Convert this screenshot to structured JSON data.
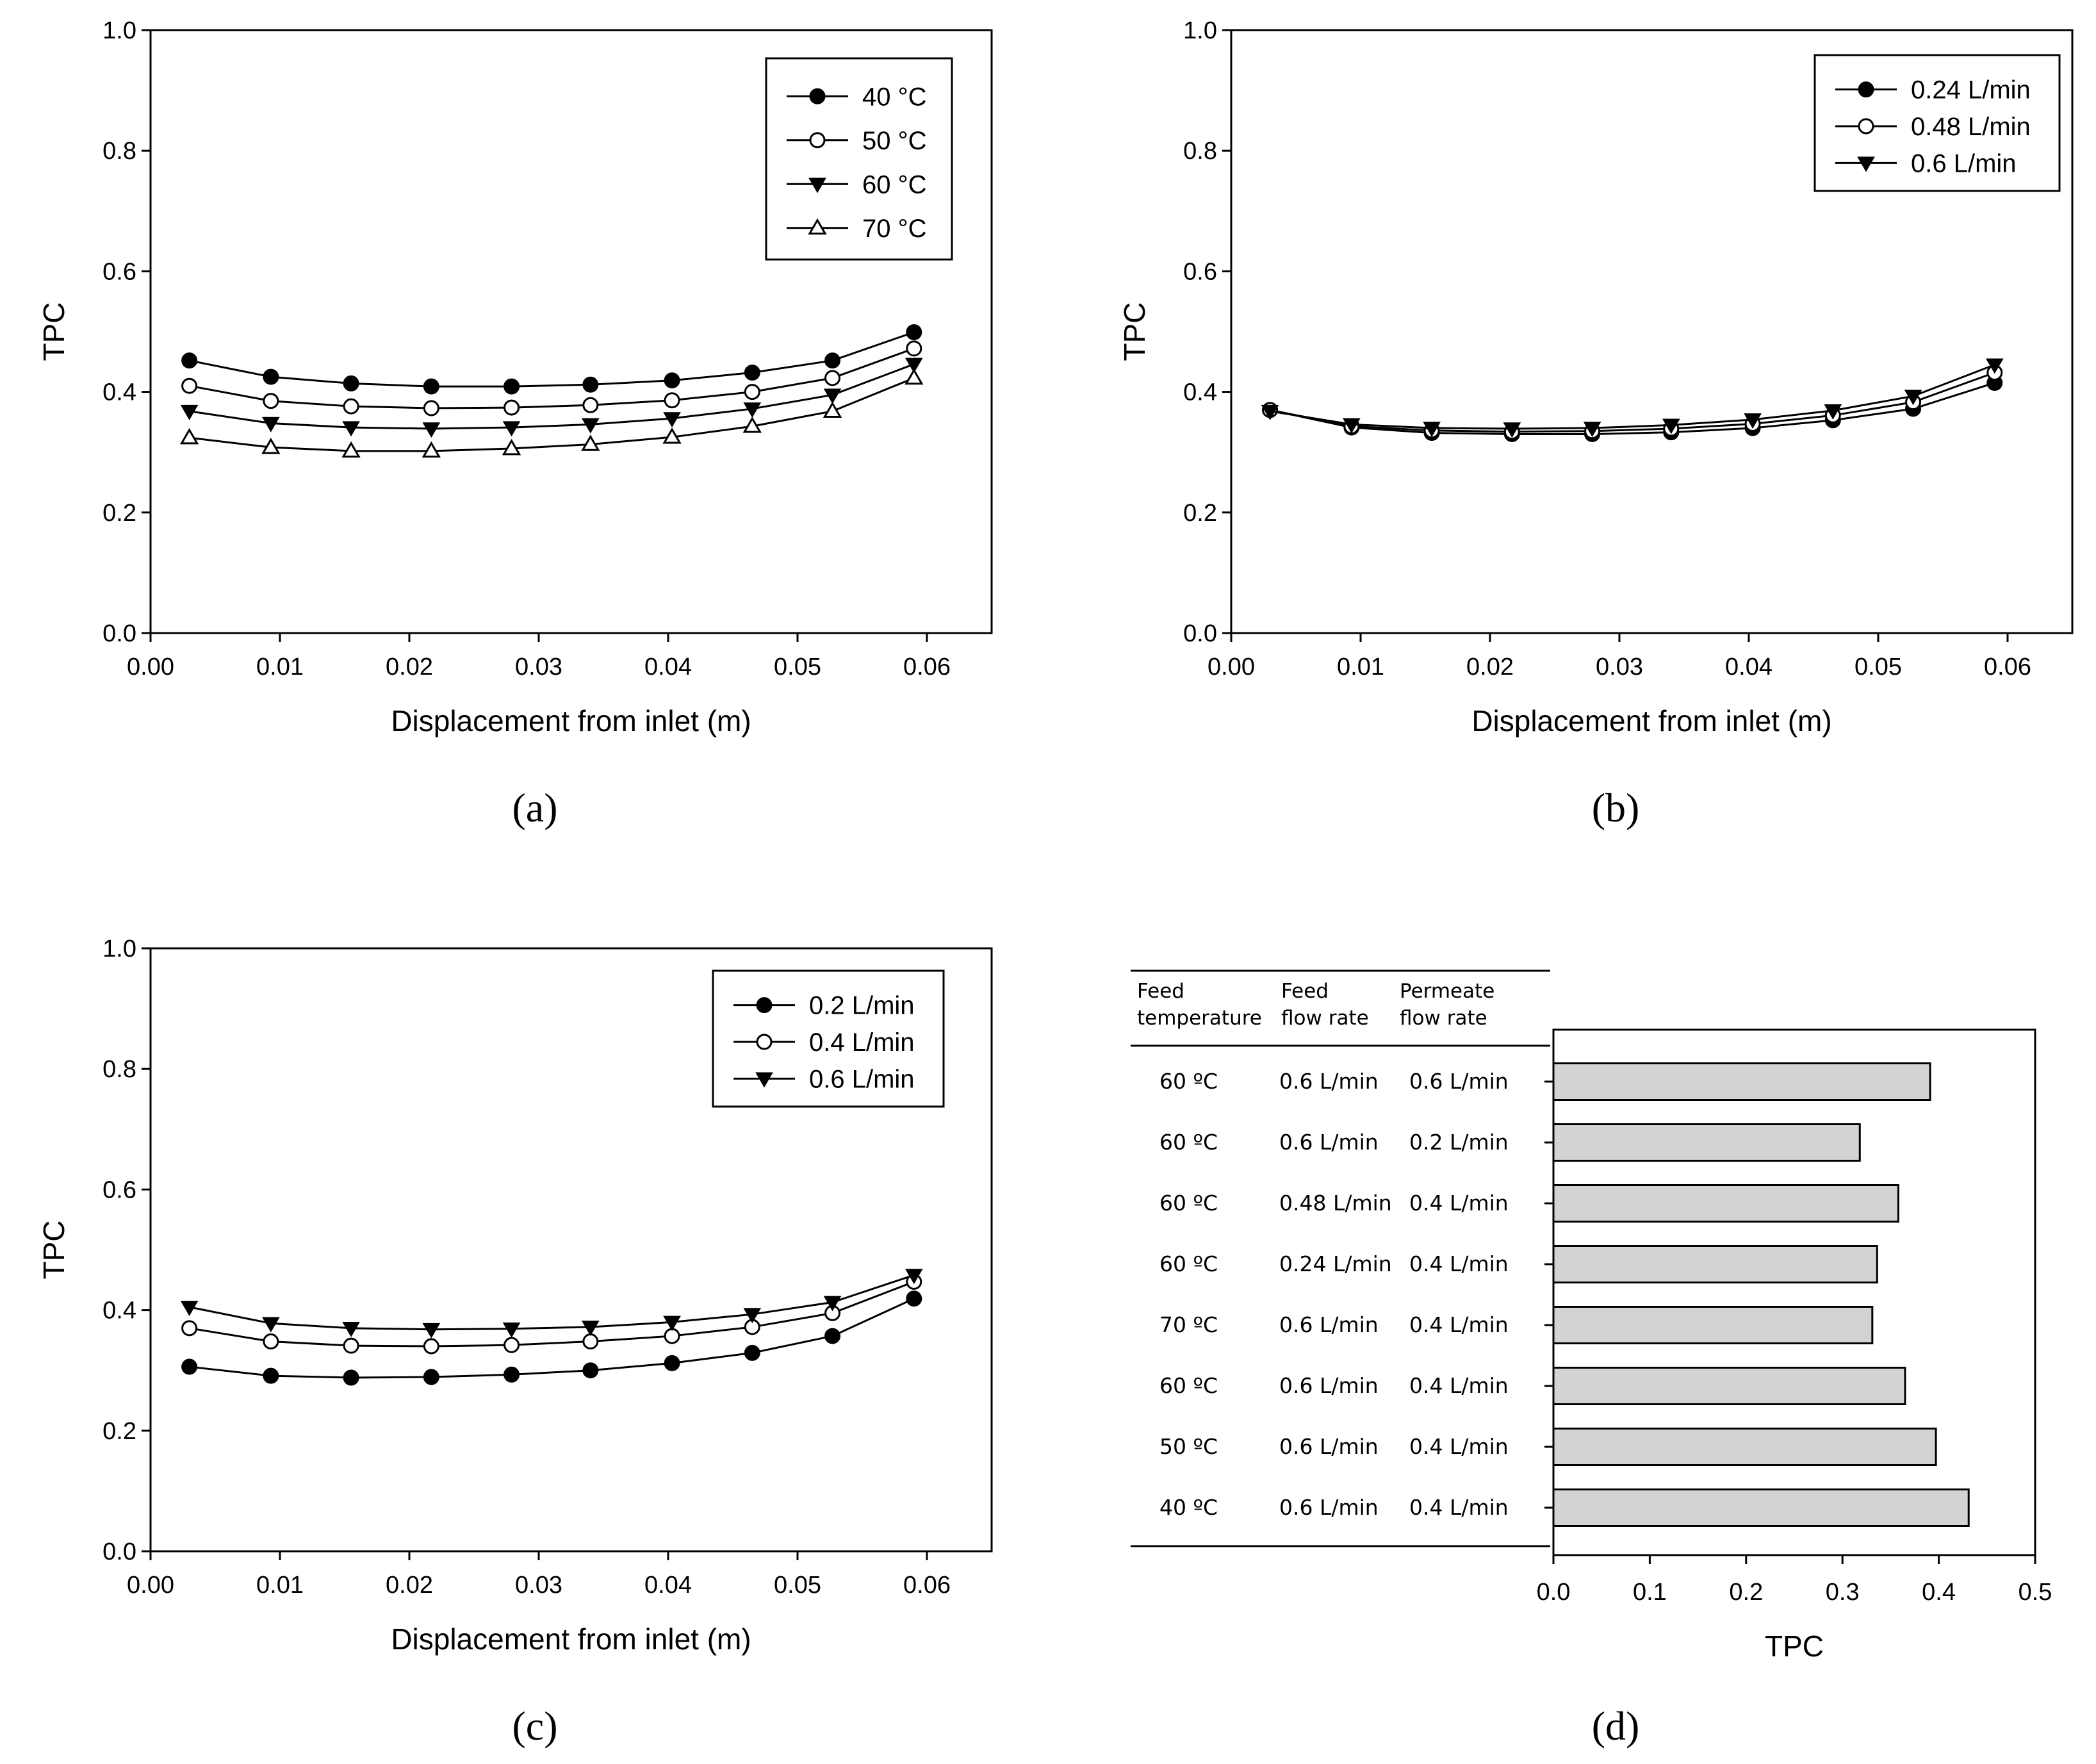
{
  "chart_data": [
    {
      "id": "a",
      "type": "line",
      "panel_label": "(a)",
      "xlabel": "Displacement from inlet (m)",
      "ylabel": "TPC",
      "xlim": [
        0.0,
        0.065
      ],
      "ylim": [
        0.0,
        1.0
      ],
      "xticks": [
        "0.00",
        "0.01",
        "0.02",
        "0.03",
        "0.04",
        "0.05",
        "0.06"
      ],
      "yticks": [
        "0.0",
        "0.2",
        "0.4",
        "0.6",
        "0.8",
        "1.0"
      ],
      "legend_position": "top-right",
      "x": [
        0.003,
        0.0093,
        0.0155,
        0.0217,
        0.0279,
        0.034,
        0.0403,
        0.0465,
        0.0527,
        0.059
      ],
      "series": [
        {
          "name": "40 °C",
          "marker": "filled-circle",
          "values": [
            0.452,
            0.425,
            0.414,
            0.409,
            0.409,
            0.412,
            0.419,
            0.432,
            0.452,
            0.499
          ]
        },
        {
          "name": "50 °C",
          "marker": "open-circle",
          "values": [
            0.41,
            0.385,
            0.376,
            0.373,
            0.374,
            0.378,
            0.386,
            0.4,
            0.423,
            0.472
          ]
        },
        {
          "name": "60 °C",
          "marker": "filled-triangle-down",
          "values": [
            0.368,
            0.348,
            0.341,
            0.339,
            0.341,
            0.346,
            0.356,
            0.372,
            0.395,
            0.446
          ]
        },
        {
          "name": "70 °C",
          "marker": "open-triangle-up",
          "values": [
            0.324,
            0.308,
            0.302,
            0.302,
            0.306,
            0.313,
            0.325,
            0.343,
            0.368,
            0.423
          ]
        }
      ]
    },
    {
      "id": "b",
      "type": "line",
      "panel_label": "(b)",
      "xlabel": "Displacement from inlet (m)",
      "ylabel": "TPC",
      "xlim": [
        0.0,
        0.065
      ],
      "ylim": [
        0.0,
        1.0
      ],
      "xticks": [
        "0.00",
        "0.01",
        "0.02",
        "0.03",
        "0.04",
        "0.05",
        "0.06"
      ],
      "yticks": [
        "0.0",
        "0.2",
        "0.4",
        "0.6",
        "0.8",
        "1.0"
      ],
      "legend_position": "top-right",
      "x": [
        0.003,
        0.0093,
        0.0155,
        0.0217,
        0.0279,
        0.034,
        0.0403,
        0.0465,
        0.0527,
        0.059
      ],
      "series": [
        {
          "name": "0.24 L/min",
          "marker": "filled-circle",
          "values": [
            0.37,
            0.341,
            0.332,
            0.33,
            0.33,
            0.333,
            0.34,
            0.353,
            0.372,
            0.415
          ]
        },
        {
          "name": "0.48 L/min",
          "marker": "open-circle",
          "values": [
            0.37,
            0.343,
            0.336,
            0.334,
            0.335,
            0.339,
            0.347,
            0.361,
            0.383,
            0.432
          ]
        },
        {
          "name": "0.6 L/min",
          "marker": "filled-triangle-down",
          "values": [
            0.368,
            0.346,
            0.34,
            0.339,
            0.34,
            0.345,
            0.354,
            0.369,
            0.393,
            0.445
          ]
        }
      ]
    },
    {
      "id": "c",
      "type": "line",
      "panel_label": "(c)",
      "xlabel": "Displacement from inlet (m)",
      "ylabel": "TPC",
      "xlim": [
        0.0,
        0.065
      ],
      "ylim": [
        0.0,
        1.0
      ],
      "xticks": [
        "0.00",
        "0.01",
        "0.02",
        "0.03",
        "0.04",
        "0.05",
        "0.06"
      ],
      "yticks": [
        "0.0",
        "0.2",
        "0.4",
        "0.6",
        "0.8",
        "1.0"
      ],
      "legend_position": "top-right",
      "x": [
        0.003,
        0.0093,
        0.0155,
        0.0217,
        0.0279,
        0.034,
        0.0403,
        0.0465,
        0.0527,
        0.059
      ],
      "series": [
        {
          "name": "0.2 L/min",
          "marker": "filled-circle",
          "values": [
            0.306,
            0.291,
            0.288,
            0.289,
            0.293,
            0.3,
            0.312,
            0.329,
            0.357,
            0.419
          ]
        },
        {
          "name": "0.4 L/min",
          "marker": "open-circle",
          "values": [
            0.37,
            0.348,
            0.341,
            0.34,
            0.342,
            0.348,
            0.357,
            0.372,
            0.395,
            0.447
          ]
        },
        {
          "name": "0.6 L/min",
          "marker": "filled-triangle-down",
          "values": [
            0.405,
            0.378,
            0.37,
            0.368,
            0.369,
            0.372,
            0.38,
            0.393,
            0.413,
            0.458
          ]
        }
      ]
    },
    {
      "id": "d",
      "type": "bar",
      "orientation": "horizontal",
      "panel_label": "(d)",
      "xlabel": "TPC",
      "xlim": [
        0.0,
        0.5
      ],
      "xticks": [
        "0.0",
        "0.1",
        "0.2",
        "0.3",
        "0.4",
        "0.5"
      ],
      "table_headers": [
        [
          "Feed",
          "temperature"
        ],
        [
          "Feed",
          "flow rate"
        ],
        [
          "Permeate",
          "flow rate"
        ]
      ],
      "rows": [
        {
          "feed_temperature": "60 ºC",
          "feed_flow_rate": "0.6 L/min",
          "permeate_flow_rate": "0.6 L/min",
          "value": 0.391
        },
        {
          "feed_temperature": "60 ºC",
          "feed_flow_rate": "0.6 L/min",
          "permeate_flow_rate": "0.2 L/min",
          "value": 0.318
        },
        {
          "feed_temperature": "60 ºC",
          "feed_flow_rate": "0.48 L/min",
          "permeate_flow_rate": "0.4 L/min",
          "value": 0.358
        },
        {
          "feed_temperature": "60 ºC",
          "feed_flow_rate": "0.24 L/min",
          "permeate_flow_rate": "0.4 L/min",
          "value": 0.336
        },
        {
          "feed_temperature": "70 ºC",
          "feed_flow_rate": "0.6 L/min",
          "permeate_flow_rate": "0.4 L/min",
          "value": 0.331
        },
        {
          "feed_temperature": "60 ºC",
          "feed_flow_rate": "0.6 L/min",
          "permeate_flow_rate": "0.4 L/min",
          "value": 0.365
        },
        {
          "feed_temperature": "50 ºC",
          "feed_flow_rate": "0.6 L/min",
          "permeate_flow_rate": "0.4 L/min",
          "value": 0.397
        },
        {
          "feed_temperature": "40 ºC",
          "feed_flow_rate": "0.6 L/min",
          "permeate_flow_rate": "0.4 L/min",
          "value": 0.431
        }
      ]
    }
  ]
}
